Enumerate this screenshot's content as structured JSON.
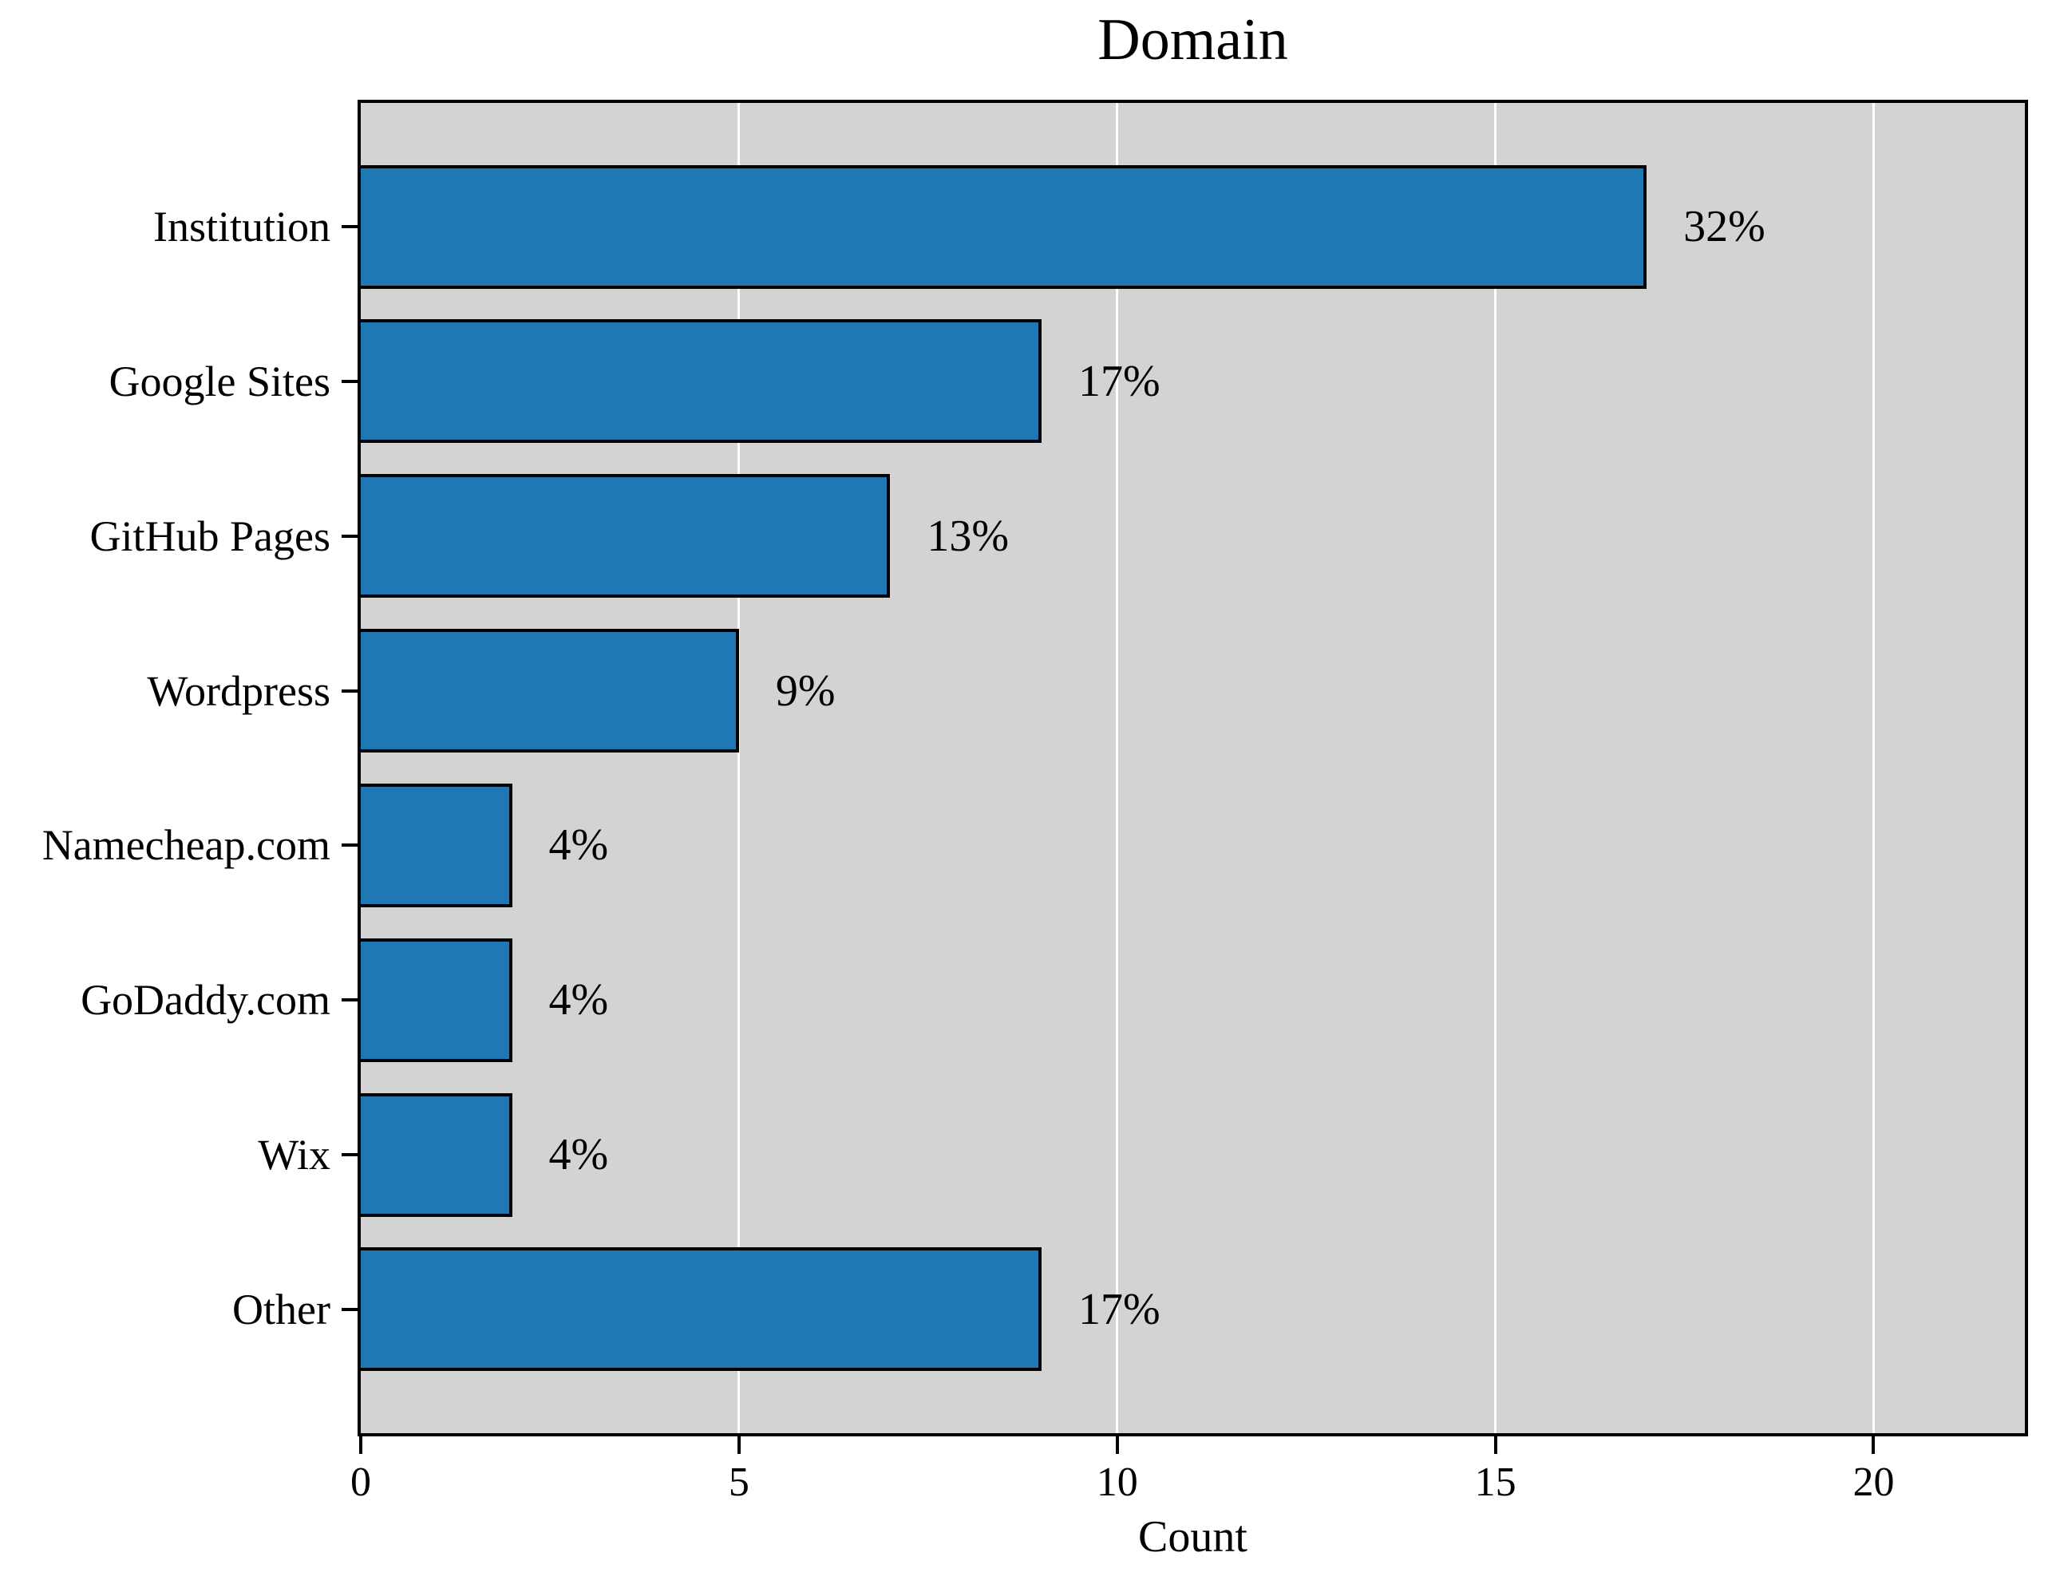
{
  "chart_data": {
    "type": "bar",
    "orientation": "horizontal",
    "title": "Domain",
    "xlabel": "Count",
    "ylabel": "",
    "categories": [
      "Institution",
      "Google Sites",
      "GitHub Pages",
      "Wordpress",
      "Namecheap.com",
      "GoDaddy.com",
      "Wix",
      "Other"
    ],
    "values": [
      17,
      9,
      7,
      5,
      2,
      2,
      2,
      9
    ],
    "bar_labels": [
      "32%",
      "17%",
      "13%",
      "9%",
      "4%",
      "4%",
      "4%",
      "17%"
    ],
    "x_ticks": [
      "0",
      "5",
      "10",
      "15",
      "20"
    ],
    "x_tick_values": [
      0,
      5,
      10,
      15,
      20
    ],
    "xlim": [
      0,
      22
    ],
    "grid": "vertical-gridlines-on",
    "legend": "none",
    "colors": {
      "bar_fill": "#1f77b4",
      "bar_edge": "#000000",
      "plot_background": "#d3d3d3",
      "figure_background": "#ffffff",
      "grid_line": "#ffffff",
      "text": "#000000",
      "spine": "#000000"
    }
  }
}
